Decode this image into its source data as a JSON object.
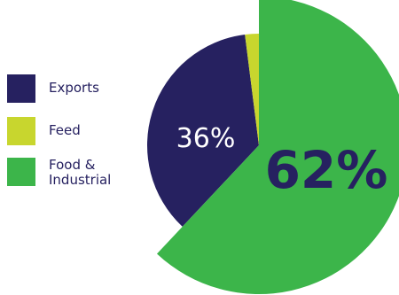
{
  "colors": {
    "exports": "#262160",
    "feed": "#c8d62e",
    "food_industrial": "#3cb54a",
    "text_dark": "#262160",
    "text_light": "#ffffff"
  },
  "legend": {
    "items": [
      {
        "label": "Exports",
        "color": "#262160"
      },
      {
        "label": "Feed",
        "color": "#c8d62e"
      },
      {
        "label": "Food &\nIndustrial",
        "color": "#3cb54a"
      }
    ]
  },
  "chart_data": {
    "type": "pie",
    "title": "",
    "legend_position": "left",
    "slices": [
      {
        "label": "Exports",
        "value": 36,
        "display": "36%",
        "color": "#262160"
      },
      {
        "label": "Feed",
        "value": 2,
        "display": "",
        "color": "#c8d62e"
      },
      {
        "label": "Food & Industrial",
        "value": 62,
        "display": "62%",
        "color": "#3cb54a"
      }
    ]
  }
}
